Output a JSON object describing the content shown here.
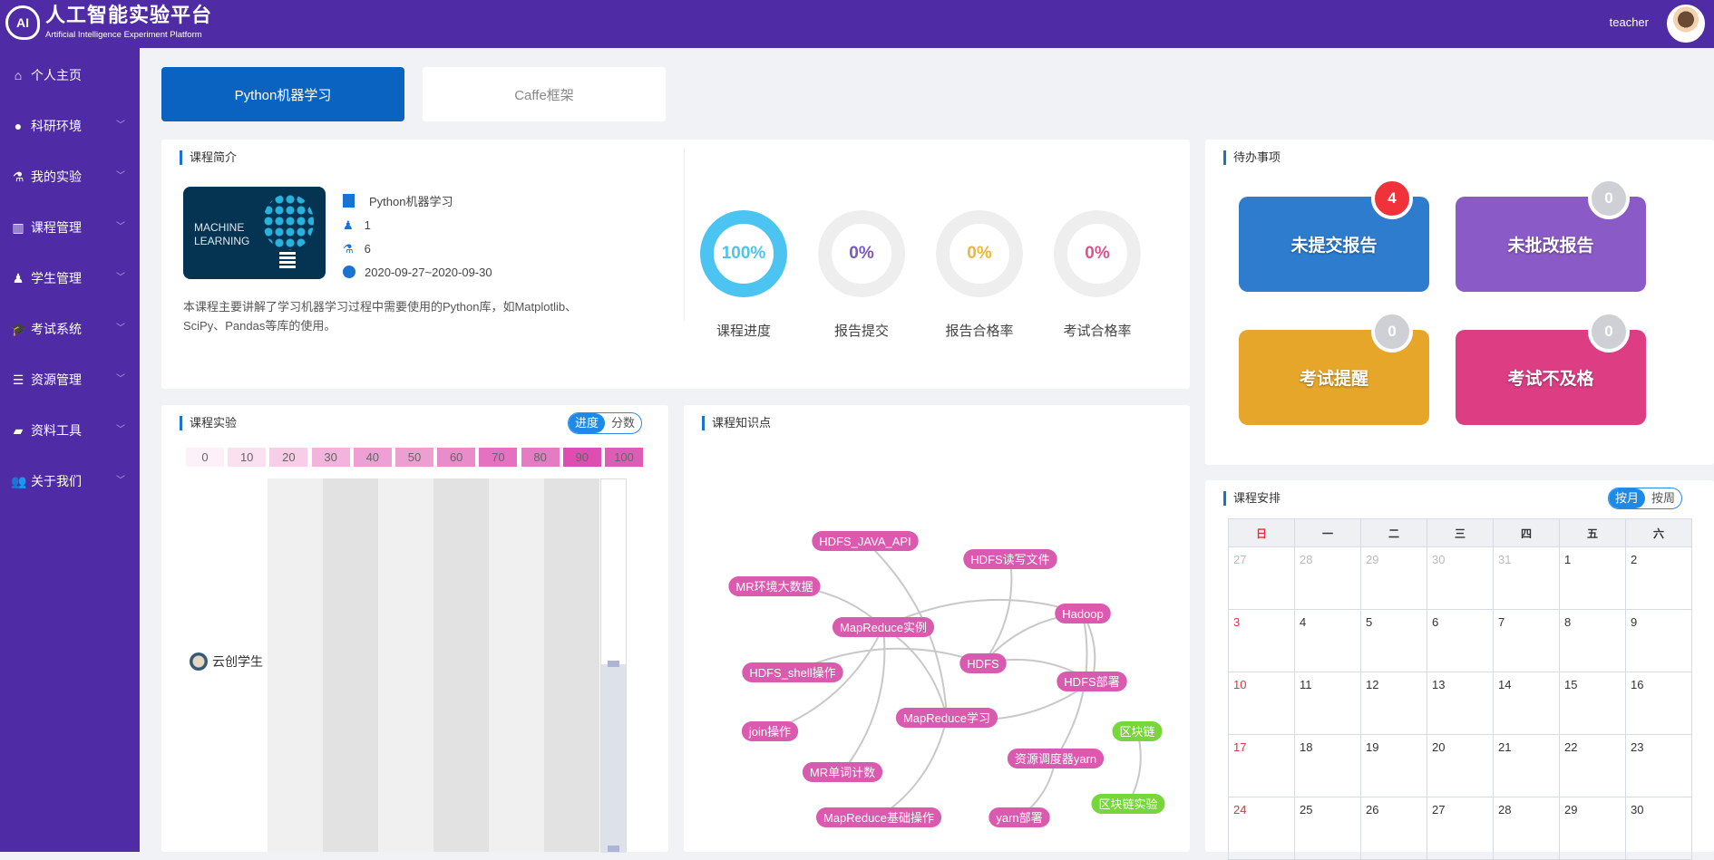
{
  "header": {
    "title": "人工智能实验平台",
    "subtitle": "Artificial Intelligence Experiment Platform",
    "logo_text": "AI",
    "username": "teacher"
  },
  "sidebar": {
    "items": [
      {
        "label": "个人主页",
        "icon": "home-icon",
        "expandable": false
      },
      {
        "label": "科研环境",
        "icon": "planet-icon",
        "expandable": true
      },
      {
        "label": "我的实验",
        "icon": "flask-icon",
        "expandable": true
      },
      {
        "label": "课程管理",
        "icon": "book-icon",
        "expandable": true
      },
      {
        "label": "学生管理",
        "icon": "student-icon",
        "expandable": true
      },
      {
        "label": "考试系统",
        "icon": "graduation-cap-icon",
        "expandable": true
      },
      {
        "label": "资源管理",
        "icon": "database-icon",
        "expandable": true
      },
      {
        "label": "资料工具",
        "icon": "folder-icon",
        "expandable": true
      },
      {
        "label": "关于我们",
        "icon": "users-icon",
        "expandable": true
      }
    ]
  },
  "tabs": [
    {
      "label": "Python机器学习",
      "active": true
    },
    {
      "label": "Caffe框架",
      "active": false
    }
  ],
  "intro": {
    "title": "课程简介",
    "image_text": "MACHINE LEARNING",
    "course_name": "Python机器学习",
    "teachers": "1",
    "experiments": "6",
    "dates": "2020-09-27~2020-09-30",
    "description": "本课程主要讲解了学习机器学习过程中需要使用的Python库，如Matplotlib、SciPy、Pandas等库的使用。",
    "stats": [
      {
        "value": "100%",
        "label": "课程进度",
        "percent": 100,
        "color": "#4cc4f2"
      },
      {
        "value": "0%",
        "label": "报告提交",
        "percent": 0,
        "color": "#7b58c2"
      },
      {
        "value": "0%",
        "label": "报告合格率",
        "percent": 0,
        "color": "#f2b534"
      },
      {
        "value": "0%",
        "label": "考试合格率",
        "percent": 0,
        "color": "#e0528a"
      }
    ]
  },
  "todo": {
    "title": "待办事项",
    "items": [
      {
        "label": "未提交报告",
        "count": "4",
        "color": "#2d7cce",
        "badge_color": "#f0333a"
      },
      {
        "label": "未批改报告",
        "count": "0",
        "color": "#8a5ac6",
        "badge_color": "#cfd0d6"
      },
      {
        "label": "考试提醒",
        "count": "0",
        "color": "#e6a62a",
        "badge_color": "#cfd0d6"
      },
      {
        "label": "考试不及格",
        "count": "0",
        "color": "#dc3d83",
        "badge_color": "#cfd0d6"
      }
    ]
  },
  "experiments": {
    "title": "课程实验",
    "toggle": [
      "进度",
      "分数"
    ],
    "toggle_active": 0
  },
  "chart_data": {
    "type": "heatmap",
    "legend": {
      "values": [
        "0",
        "10",
        "20",
        "30",
        "40",
        "50",
        "60",
        "70",
        "80",
        "90",
        "100"
      ],
      "colors": [
        "#fdf0f8",
        "#fbe0f0",
        "#f7cde8",
        "#f2b3dd",
        "#ee9fd4",
        "#eca0d2",
        "#e98ccb",
        "#e472c0",
        "#e57cc3",
        "#dc4eb0",
        "#dd5db5"
      ]
    },
    "rows": [
      "云创学生"
    ],
    "columns": 6,
    "values": [],
    "empty_cell_colors": [
      "#f0f0f0",
      "#e2e2e2"
    ]
  },
  "knowledge": {
    "title": "课程知识点",
    "node_color": "#d95aae",
    "alt_node_color": "#77d63a",
    "nodes": [
      {
        "name": "HDFS_JAVA_API",
        "group": 1
      },
      {
        "name": "HDFS读写文件",
        "group": 1
      },
      {
        "name": "MR环境大数据",
        "group": 1
      },
      {
        "name": "MapReduce实例",
        "group": 1
      },
      {
        "name": "HDFS",
        "group": 1
      },
      {
        "name": "Hadoop",
        "group": 1
      },
      {
        "name": "HDFS_shell操作",
        "group": 1
      },
      {
        "name": "HDFS部署",
        "group": 1
      },
      {
        "name": "区块链",
        "group": 2
      },
      {
        "name": "MapReduce学习",
        "group": 1
      },
      {
        "name": "join操作",
        "group": 1
      },
      {
        "name": "MR单词计数",
        "group": 1
      },
      {
        "name": "资源调度器yarn",
        "group": 1
      },
      {
        "name": "MapReduce基础操作",
        "group": 1
      },
      {
        "name": "yarn部署",
        "group": 1
      },
      {
        "name": "区块链实验",
        "group": 2
      }
    ],
    "links": [
      [
        "HDFS_JAVA_API",
        "MapReduce学习"
      ],
      [
        "HDFS读写文件",
        "HDFS"
      ],
      [
        "MR环境大数据",
        "MapReduce实例"
      ],
      [
        "MapReduce实例",
        "Hadoop"
      ],
      [
        "HDFS",
        "Hadoop"
      ],
      [
        "HDFS_shell操作",
        "HDFS"
      ],
      [
        "Hadoop",
        "HDFS部署"
      ],
      [
        "Hadoop",
        "资源调度器yarn"
      ],
      [
        "HDFS部署",
        "MapReduce学习"
      ],
      [
        "MapReduce实例",
        "join操作"
      ],
      [
        "MapReduce实例",
        "MR单词计数"
      ],
      [
        "MapReduce实例",
        "MapReduce学习"
      ],
      [
        "MapReduce学习",
        "MapReduce基础操作"
      ],
      [
        "资源调度器yarn",
        "yarn部署"
      ],
      [
        "区块链",
        "区块链实验"
      ],
      [
        "HDFS",
        "HDFS部署"
      ]
    ]
  },
  "schedule": {
    "title": "课程安排",
    "toggle": [
      "按月",
      "按周"
    ],
    "toggle_active": 0,
    "weekdays": [
      "日",
      "一",
      "二",
      "三",
      "四",
      "五",
      "六"
    ],
    "weeks": [
      [
        "27",
        "28",
        "29",
        "30",
        "31",
        "1",
        "2"
      ],
      [
        "3",
        "4",
        "5",
        "6",
        "7",
        "8",
        "9"
      ],
      [
        "10",
        "11",
        "12",
        "13",
        "14",
        "15",
        "16"
      ],
      [
        "17",
        "18",
        "19",
        "20",
        "21",
        "22",
        "23"
      ],
      [
        "24",
        "25",
        "26",
        "27",
        "28",
        "29",
        "30"
      ]
    ],
    "other_month_first_row": 5
  }
}
